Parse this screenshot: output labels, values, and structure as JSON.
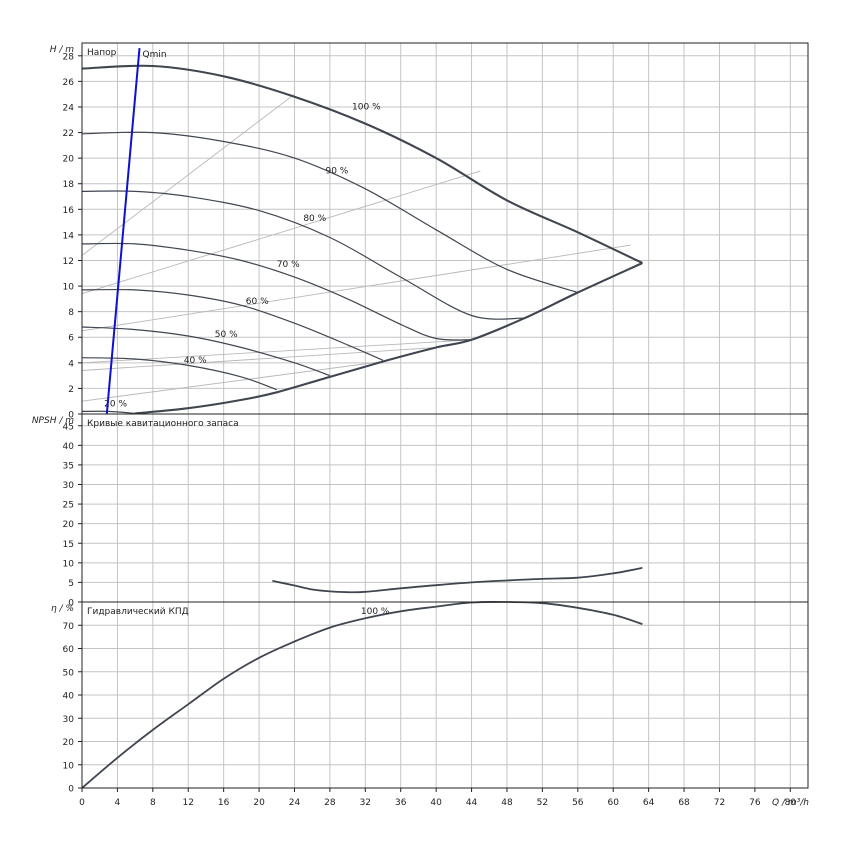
{
  "chart_data": [
    {
      "type": "line",
      "panel_label": "Напор",
      "y_axis_label": "H / m",
      "ylim": [
        0,
        29
      ],
      "y_ticks": [
        0,
        2,
        4,
        6,
        8,
        10,
        12,
        14,
        16,
        18,
        20,
        22,
        24,
        26,
        28
      ],
      "grid": true,
      "qmin_label": "Qmin",
      "qmin_line": [
        [
          2.8,
          0
        ],
        [
          6.5,
          28.6
        ]
      ],
      "speed_curves": [
        {
          "label": "100 %",
          "label_at": [
            30.5,
            23.8
          ],
          "points": [
            [
              0,
              27.0
            ],
            [
              8,
              27.2
            ],
            [
              16,
              26.4
            ],
            [
              24,
              24.8
            ],
            [
              32,
              22.7
            ],
            [
              40,
              20.0
            ],
            [
              48,
              16.7
            ],
            [
              56,
              14.2
            ],
            [
              63.3,
              11.8
            ]
          ]
        },
        {
          "label": "90 %",
          "label_at": [
            27.5,
            18.8
          ],
          "points": [
            [
              0,
              21.9
            ],
            [
              8,
              22.0
            ],
            [
              16,
              21.3
            ],
            [
              24,
              20.0
            ],
            [
              32,
              17.6
            ],
            [
              40,
              14.4
            ],
            [
              48,
              11.3
            ],
            [
              56,
              9.5
            ]
          ]
        },
        {
          "label": "80 %",
          "label_at": [
            25.0,
            15.1
          ],
          "points": [
            [
              0,
              17.4
            ],
            [
              6,
              17.4
            ],
            [
              12,
              17.0
            ],
            [
              20,
              15.9
            ],
            [
              28,
              13.8
            ],
            [
              36,
              10.7
            ],
            [
              44,
              7.7
            ],
            [
              50,
              7.5
            ]
          ]
        },
        {
          "label": "70 %",
          "label_at": [
            22.0,
            11.5
          ],
          "points": [
            [
              0,
              13.3
            ],
            [
              6,
              13.3
            ],
            [
              12,
              12.8
            ],
            [
              18,
              12.0
            ],
            [
              24,
              10.7
            ],
            [
              30,
              9.0
            ],
            [
              36,
              7.0
            ],
            [
              40,
              5.9
            ],
            [
              44,
              5.8
            ]
          ]
        },
        {
          "label": "60 %",
          "label_at": [
            18.5,
            8.6
          ],
          "points": [
            [
              0,
              9.7
            ],
            [
              6,
              9.7
            ],
            [
              12,
              9.3
            ],
            [
              18,
              8.5
            ],
            [
              24,
              7.1
            ],
            [
              30,
              5.4
            ],
            [
              34,
              4.2
            ]
          ]
        },
        {
          "label": "50 %",
          "label_at": [
            15.0,
            6.0
          ],
          "points": [
            [
              0,
              6.8
            ],
            [
              6,
              6.6
            ],
            [
              12,
              6.1
            ],
            [
              18,
              5.2
            ],
            [
              24,
              4.0
            ],
            [
              28,
              3.0
            ]
          ]
        },
        {
          "label": "40 %",
          "label_at": [
            11.5,
            4.0
          ],
          "points": [
            [
              0,
              4.4
            ],
            [
              6,
              4.3
            ],
            [
              12,
              3.8
            ],
            [
              18,
              2.9
            ],
            [
              22,
              1.9
            ]
          ]
        },
        {
          "label": "20 %",
          "label_at": [
            2.5,
            0.6
          ],
          "points": [
            [
              0,
              0.2
            ],
            [
              3,
              0.2
            ],
            [
              6,
              0.05
            ]
          ]
        }
      ],
      "limit_curve": [
        [
          6,
          0.05
        ],
        [
          12,
          0.45
        ],
        [
          18,
          1.1
        ],
        [
          22,
          1.7
        ],
        [
          28,
          2.9
        ],
        [
          34,
          4.1
        ],
        [
          40,
          5.2
        ],
        [
          44,
          5.8
        ],
        [
          50,
          7.5
        ],
        [
          56,
          9.5
        ],
        [
          63.3,
          11.8
        ]
      ],
      "efficiency_lines": [
        [
          [
            0,
            12.4
          ],
          [
            24,
            25.0
          ]
        ],
        [
          [
            0,
            9.4
          ],
          [
            45,
            19.0
          ]
        ],
        [
          [
            0,
            6.5
          ],
          [
            62,
            13.2
          ]
        ],
        [
          [
            0,
            4.0
          ],
          [
            44,
            5.8
          ]
        ],
        [
          [
            0,
            3.4
          ],
          [
            40,
            5.2
          ]
        ],
        [
          [
            0,
            1.0
          ],
          [
            34,
            4.1
          ]
        ]
      ]
    },
    {
      "type": "line",
      "panel_label": "Кривые кавитационного запаса",
      "y_axis_label": "NPSH / m",
      "ylim": [
        0,
        48
      ],
      "y_ticks": [
        0,
        5,
        10,
        15,
        20,
        25,
        30,
        35,
        40,
        45
      ],
      "grid": true,
      "series": [
        {
          "points": [
            [
              21.5,
              5.4
            ],
            [
              24,
              4.2
            ],
            [
              26,
              3.2
            ],
            [
              28,
              2.7
            ],
            [
              30,
              2.5
            ],
            [
              32,
              2.6
            ],
            [
              36,
              3.5
            ],
            [
              40,
              4.3
            ],
            [
              44,
              5.0
            ],
            [
              48,
              5.5
            ],
            [
              52,
              5.9
            ],
            [
              56,
              6.2
            ],
            [
              60,
              7.3
            ],
            [
              63.3,
              8.7
            ]
          ]
        }
      ]
    },
    {
      "type": "line",
      "panel_label": "Гидравлический КПД",
      "y_axis_label": "η / %",
      "ylim": [
        0,
        80
      ],
      "y_ticks": [
        0,
        10,
        20,
        30,
        40,
        50,
        60,
        70
      ],
      "grid": true,
      "series": [
        {
          "label": "100 %",
          "label_at": [
            31.5,
            74.8
          ],
          "points": [
            [
              0,
              0
            ],
            [
              4,
              13
            ],
            [
              8,
              25
            ],
            [
              12,
              36
            ],
            [
              16,
              47
            ],
            [
              20,
              56
            ],
            [
              24,
              63
            ],
            [
              28,
              69
            ],
            [
              32,
              73
            ],
            [
              36,
              76
            ],
            [
              40,
              78
            ],
            [
              44,
              79.8
            ],
            [
              48,
              80
            ],
            [
              52,
              79.5
            ],
            [
              56,
              77.5
            ],
            [
              60,
              74.5
            ],
            [
              63.3,
              70.5
            ]
          ]
        }
      ]
    }
  ],
  "x_axis": {
    "label": "Q / m³/h",
    "xlim": [
      0,
      82
    ],
    "ticks": [
      0,
      4,
      8,
      12,
      16,
      20,
      24,
      28,
      32,
      36,
      40,
      44,
      48,
      52,
      56,
      60,
      64,
      68,
      72,
      76,
      80
    ]
  },
  "colors": {
    "curve": "#404650",
    "qmin": "#1010d0",
    "grid": "#c4c4c4",
    "frame": "#222222",
    "eff_line": "#b8b8b8"
  }
}
